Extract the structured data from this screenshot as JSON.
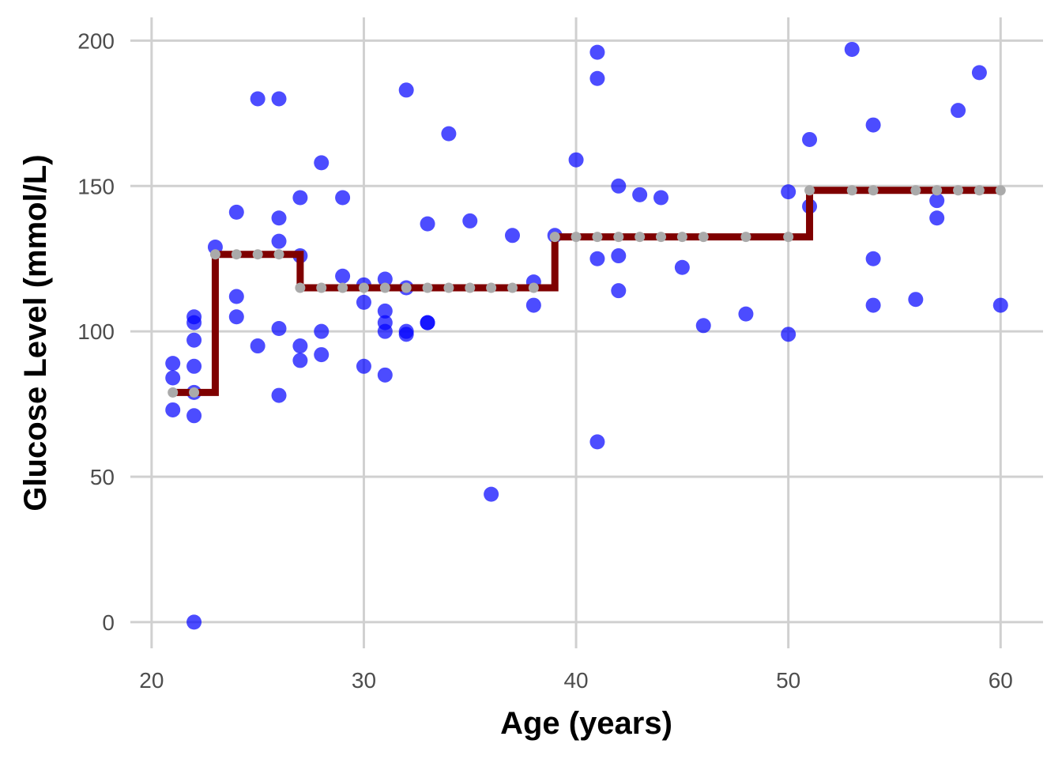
{
  "chart_data": {
    "type": "scatter",
    "title": "",
    "xlabel": "Age (years)",
    "ylabel": "Glucose Level (mmol/L)",
    "xlim": [
      19,
      62
    ],
    "ylim": [
      -9,
      208
    ],
    "xticks": [
      20,
      30,
      40,
      50,
      60
    ],
    "yticks": [
      0,
      50,
      100,
      150,
      200
    ],
    "grid": true,
    "colors": {
      "points": "#0000ff",
      "step_line": "#7f0000",
      "fitted_points": "#aaaaaa",
      "grid": "#d0d0d0"
    },
    "series": [
      {
        "type": "scatter",
        "points": [
          [
            21,
            89
          ],
          [
            21,
            84
          ],
          [
            21,
            73
          ],
          [
            22,
            105
          ],
          [
            22,
            103
          ],
          [
            22,
            97
          ],
          [
            22,
            88
          ],
          [
            22,
            79
          ],
          [
            22,
            71
          ],
          [
            22,
            0
          ],
          [
            23,
            129
          ],
          [
            24,
            141
          ],
          [
            24,
            112
          ],
          [
            24,
            105
          ],
          [
            25,
            180
          ],
          [
            25,
            95
          ],
          [
            26,
            180
          ],
          [
            26,
            139
          ],
          [
            26,
            131
          ],
          [
            26,
            101
          ],
          [
            26,
            78
          ],
          [
            27,
            146
          ],
          [
            27,
            126
          ],
          [
            27,
            95
          ],
          [
            27,
            90
          ],
          [
            28,
            158
          ],
          [
            28,
            100
          ],
          [
            28,
            92
          ],
          [
            29,
            146
          ],
          [
            29,
            119
          ],
          [
            30,
            116
          ],
          [
            30,
            110
          ],
          [
            30,
            88
          ],
          [
            31,
            118
          ],
          [
            31,
            107
          ],
          [
            31,
            103
          ],
          [
            31,
            100
          ],
          [
            31,
            85
          ],
          [
            32,
            183
          ],
          [
            32,
            115
          ],
          [
            32,
            100
          ],
          [
            32,
            99
          ],
          [
            33,
            137
          ],
          [
            33,
            103
          ],
          [
            33,
            103
          ],
          [
            34,
            168
          ],
          [
            35,
            138
          ],
          [
            36,
            44
          ],
          [
            37,
            133
          ],
          [
            38,
            117
          ],
          [
            38,
            109
          ],
          [
            39,
            133
          ],
          [
            40,
            159
          ],
          [
            41,
            196
          ],
          [
            41,
            187
          ],
          [
            41,
            125
          ],
          [
            41,
            62
          ],
          [
            42,
            150
          ],
          [
            42,
            126
          ],
          [
            42,
            114
          ],
          [
            43,
            147
          ],
          [
            44,
            146
          ],
          [
            45,
            122
          ],
          [
            46,
            102
          ],
          [
            48,
            106
          ],
          [
            50,
            148
          ],
          [
            50,
            99
          ],
          [
            51,
            166
          ],
          [
            51,
            143
          ],
          [
            53,
            197
          ],
          [
            54,
            171
          ],
          [
            54,
            125
          ],
          [
            54,
            109
          ],
          [
            56,
            111
          ],
          [
            57,
            145
          ],
          [
            57,
            139
          ],
          [
            58,
            176
          ],
          [
            59,
            189
          ],
          [
            60,
            109
          ]
        ]
      },
      {
        "type": "step",
        "x": [
          21,
          23,
          27,
          39,
          51,
          60
        ],
        "y": [
          79,
          126.5,
          115,
          132.5,
          148.5,
          148.5
        ]
      },
      {
        "type": "scatter",
        "points": [
          [
            21,
            79
          ],
          [
            22,
            79
          ],
          [
            23,
            126.5
          ],
          [
            24,
            126.5
          ],
          [
            25,
            126.5
          ],
          [
            26,
            126.5
          ],
          [
            27,
            115
          ],
          [
            28,
            115
          ],
          [
            29,
            115
          ],
          [
            30,
            115
          ],
          [
            31,
            115
          ],
          [
            32,
            115
          ],
          [
            33,
            115
          ],
          [
            34,
            115
          ],
          [
            35,
            115
          ],
          [
            36,
            115
          ],
          [
            37,
            115
          ],
          [
            38,
            115
          ],
          [
            39,
            132.5
          ],
          [
            40,
            132.5
          ],
          [
            41,
            132.5
          ],
          [
            42,
            132.5
          ],
          [
            43,
            132.5
          ],
          [
            44,
            132.5
          ],
          [
            45,
            132.5
          ],
          [
            46,
            132.5
          ],
          [
            48,
            132.5
          ],
          [
            50,
            132.5
          ],
          [
            51,
            148.5
          ],
          [
            53,
            148.5
          ],
          [
            54,
            148.5
          ],
          [
            56,
            148.5
          ],
          [
            57,
            148.5
          ],
          [
            58,
            148.5
          ],
          [
            59,
            148.5
          ],
          [
            60,
            148.5
          ]
        ]
      }
    ]
  }
}
